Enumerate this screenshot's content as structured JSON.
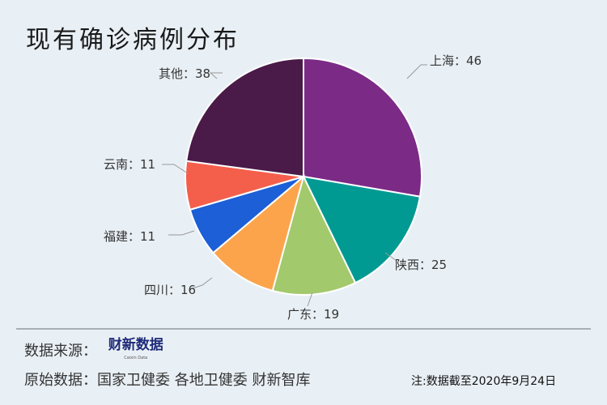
{
  "title": "现有确诊病例分布",
  "chart_data": {
    "type": "pie",
    "title": "现有确诊病例分布",
    "start": "top",
    "direction": "clockwise",
    "slices": [
      {
        "label": "上海",
        "value": 46,
        "color": "#7b2a86"
      },
      {
        "label": "陕西",
        "value": 25,
        "color": "#009a93"
      },
      {
        "label": "广东",
        "value": 19,
        "color": "#a2c96b"
      },
      {
        "label": "四川",
        "value": 16,
        "color": "#fca44b"
      },
      {
        "label": "福建",
        "value": 11,
        "color": "#1c5fd6"
      },
      {
        "label": "云南",
        "value": 11,
        "color": "#f45f4c"
      },
      {
        "label": "其他",
        "value": 38,
        "color": "#4a1a48"
      }
    ],
    "labels": [
      "上海：46",
      "陕西：25",
      "广东：19",
      "四川：16",
      "福建：11",
      "云南：11",
      "其他：38"
    ]
  },
  "footer": {
    "source_label": "数据来源：",
    "logo_text": "财新数据",
    "logo_sub": "Caixin Data",
    "original": "原始数据：国家卫健委 各地卫健委 财新智库",
    "note": "注:数据截至2020年9月24日"
  }
}
